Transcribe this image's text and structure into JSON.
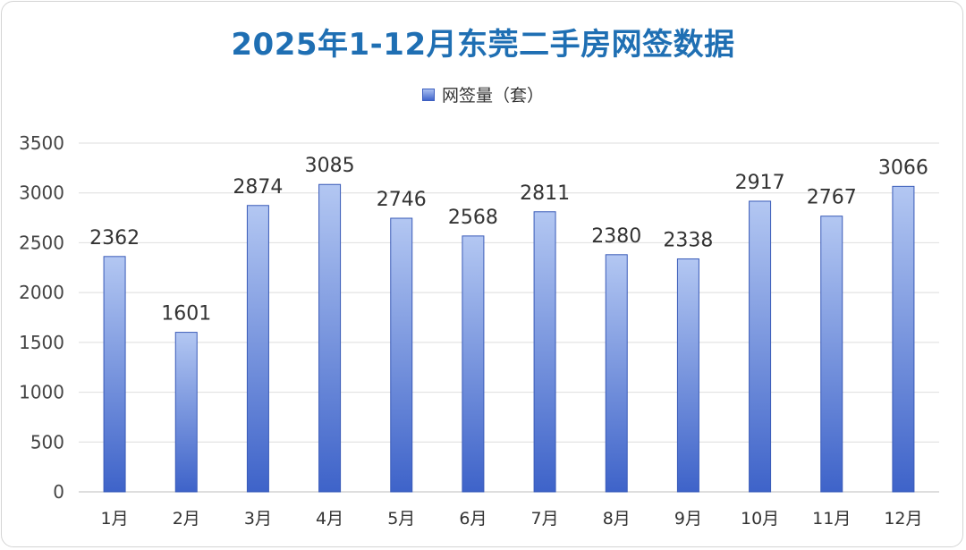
{
  "chart_data": {
    "type": "bar",
    "title": "2025年1-12月东莞二手房网签数据",
    "categories": [
      "1月",
      "2月",
      "3月",
      "4月",
      "5月",
      "6月",
      "7月",
      "8月",
      "9月",
      "10月",
      "11月",
      "12月"
    ],
    "series": [
      {
        "name": "网签量（套）",
        "values": [
          2362,
          1601,
          2874,
          3085,
          2746,
          2568,
          2811,
          2380,
          2338,
          2917,
          2767,
          3066
        ]
      }
    ],
    "ylim": [
      0,
      3500
    ],
    "yticks": [
      0,
      500,
      1000,
      1500,
      2000,
      2500,
      3000,
      3500
    ],
    "xlabel": "",
    "ylabel": "",
    "grid": true,
    "legend": "top-center",
    "colors": {
      "bar_top": "#b3c7f2",
      "bar_bottom": "#3e63c9",
      "bar_stroke": "#3a5bb8",
      "title": "#1f6fb3"
    }
  }
}
